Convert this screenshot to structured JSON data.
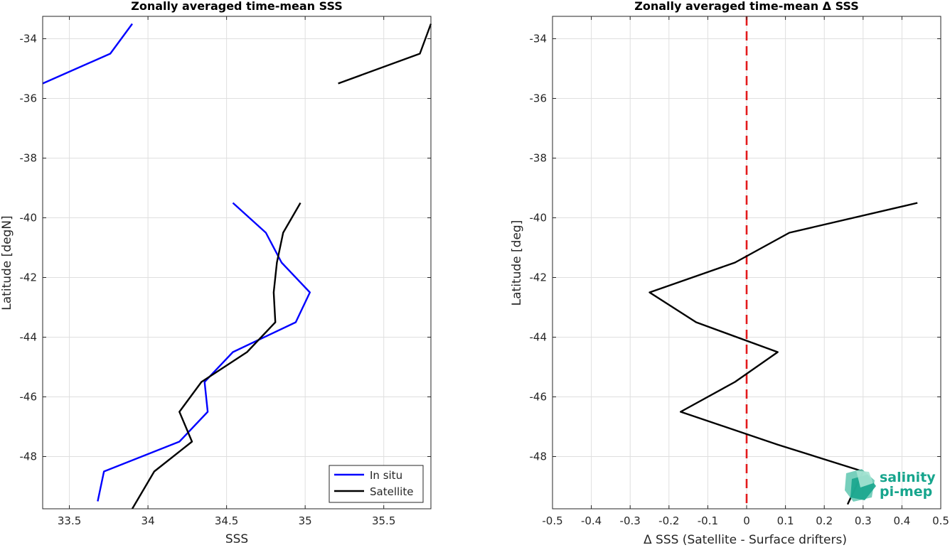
{
  "chart_data": [
    {
      "type": "line",
      "title": "Zonally averaged time-mean SSS",
      "xlabel": "SSS",
      "ylabel": "Latitude [degN]",
      "xlim": [
        33.33,
        35.8
      ],
      "ylim": [
        -49.75,
        -33.25
      ],
      "xticks": [
        33.5,
        34,
        34.5,
        35,
        35.5
      ],
      "xtick_labels": [
        "33.5",
        "34",
        "34.5",
        "35",
        "35.5"
      ],
      "yticks": [
        -34,
        -36,
        -38,
        -40,
        -42,
        -44,
        -46,
        -48
      ],
      "ytick_labels": [
        "-34",
        "-36",
        "-38",
        "-40",
        "-42",
        "-44",
        "-46",
        "-48"
      ],
      "grid": true,
      "legend": "bottom-right",
      "series": [
        {
          "name": "In situ",
          "color": "#0000ff",
          "segments": [
            [
              [
                33.9,
                -33.5
              ],
              [
                33.76,
                -34.5
              ],
              [
                33.33,
                -35.5
              ]
            ],
            [
              [
                34.54,
                -39.5
              ],
              [
                34.75,
                -40.5
              ],
              [
                34.85,
                -41.5
              ],
              [
                35.03,
                -42.5
              ],
              [
                34.94,
                -43.5
              ],
              [
                34.54,
                -44.5
              ],
              [
                34.36,
                -45.5
              ],
              [
                34.38,
                -46.5
              ],
              [
                34.2,
                -47.5
              ],
              [
                33.72,
                -48.5
              ],
              [
                33.68,
                -49.5
              ]
            ]
          ]
        },
        {
          "name": "Satellite",
          "color": "#000000",
          "segments": [
            [
              [
                35.8,
                -33.5
              ],
              [
                35.73,
                -34.5
              ],
              [
                35.21,
                -35.5
              ]
            ],
            [
              [
                34.97,
                -39.5
              ],
              [
                34.86,
                -40.5
              ],
              [
                34.82,
                -41.5
              ],
              [
                34.8,
                -42.5
              ],
              [
                34.81,
                -43.5
              ],
              [
                34.63,
                -44.5
              ],
              [
                34.34,
                -45.5
              ],
              [
                34.2,
                -46.5
              ],
              [
                34.28,
                -47.5
              ],
              [
                34.04,
                -48.5
              ],
              [
                33.9,
                -49.75
              ]
            ]
          ]
        }
      ]
    },
    {
      "type": "line",
      "title": "Zonally averaged time-mean Δ SSS",
      "xlabel": "Δ SSS (Satellite - Surface drifters)",
      "ylabel": "Latitude [deg]",
      "xlim": [
        -0.5,
        0.5
      ],
      "ylim": [
        -49.75,
        -33.25
      ],
      "xticks": [
        -0.5,
        -0.4,
        -0.3,
        -0.2,
        -0.1,
        0,
        0.1,
        0.2,
        0.3,
        0.4,
        0.5
      ],
      "xtick_labels": [
        "-0.5",
        "-0.4",
        "-0.3",
        "-0.2",
        "-0.1",
        "0",
        "0.1",
        "0.2",
        "0.3",
        "0.4",
        "0.5"
      ],
      "yticks": [
        -34,
        -36,
        -38,
        -40,
        -42,
        -44,
        -46,
        -48
      ],
      "ytick_labels": [
        "-34",
        "-36",
        "-38",
        "-40",
        "-42",
        "-44",
        "-46",
        "-48"
      ],
      "grid": true,
      "reference_line": {
        "x": 0,
        "color": "#e31a1c",
        "style": "dashed"
      },
      "series": [
        {
          "color": "#000000",
          "segments": [
            [
              [
                0.44,
                -39.5
              ],
              [
                0.11,
                -40.5
              ],
              [
                -0.03,
                -41.5
              ],
              [
                -0.25,
                -42.5
              ],
              [
                -0.13,
                -43.5
              ],
              [
                0.08,
                -44.5
              ],
              [
                -0.03,
                -45.5
              ],
              [
                -0.17,
                -46.5
              ],
              [
                0.08,
                -47.6
              ],
              [
                0.3,
                -48.5
              ],
              [
                0.26,
                -49.6
              ]
            ]
          ]
        }
      ]
    }
  ],
  "logo": {
    "line1": "salinity",
    "line2": "pi-mep",
    "color": "#17a58d"
  }
}
